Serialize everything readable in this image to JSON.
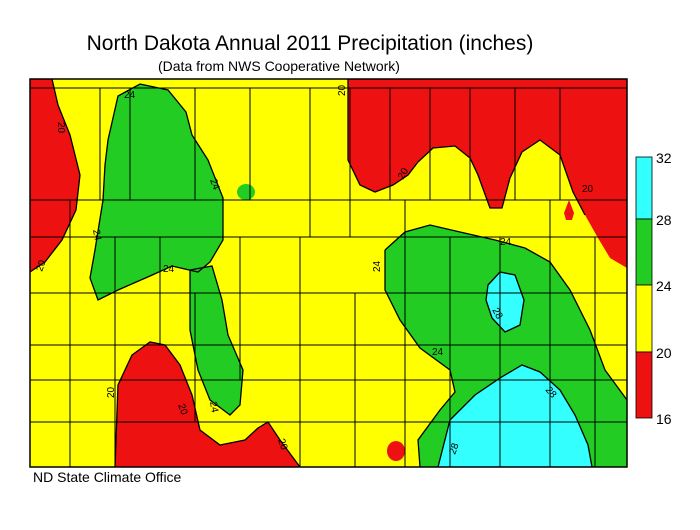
{
  "title": "North Dakota Annual 2011 Precipitation (inches)",
  "subtitle": "(Data from NWS Cooperative Network)",
  "credit": "ND State Climate Office",
  "legend": {
    "ticks": [
      "32",
      "28",
      "24",
      "20",
      "16"
    ],
    "bands": [
      {
        "range": "28-32",
        "color": "#33ffff"
      },
      {
        "range": "24-28",
        "color": "#22cc22"
      },
      {
        "range": "20-24",
        "color": "#ffff00"
      },
      {
        "range": "16-20",
        "color": "#ee1111"
      }
    ]
  },
  "contour_labels": [
    "24",
    "20",
    "20",
    "24",
    "24",
    "20",
    "24",
    "20",
    "20",
    "20",
    "20",
    "24",
    "24",
    "28",
    "28",
    "24",
    "28",
    "24",
    "20"
  ],
  "colors": {
    "high": "#33ffff",
    "mid_high": "#22cc22",
    "mid": "#ffff00",
    "low": "#ee1111"
  }
}
